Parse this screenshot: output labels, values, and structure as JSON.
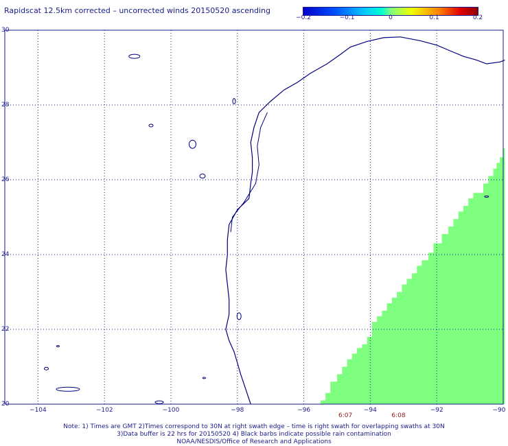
{
  "title": "Rapidscat 12.5km corrected – uncorrected winds 20150520 ascending",
  "colorbar": {
    "ticks": [
      {
        "value": -0.2,
        "label": "−0.2"
      },
      {
        "value": -0.1,
        "label": "−0.1"
      },
      {
        "value": 0,
        "label": "0"
      },
      {
        "value": 0.1,
        "label": "0.1"
      },
      {
        "value": 0.2,
        "label": "0.2"
      }
    ]
  },
  "map": {
    "lat_range": [
      20,
      30
    ],
    "lon_range": [
      -105,
      -90
    ],
    "lat_labels": [
      {
        "lat": 30,
        "label": "30"
      },
      {
        "lat": 28,
        "label": "28"
      },
      {
        "lat": 26,
        "label": "26"
      },
      {
        "lat": 24,
        "label": "24"
      },
      {
        "lat": 22,
        "label": "22"
      },
      {
        "lat": 20,
        "label": "20"
      }
    ],
    "lon_labels": [
      {
        "lon": -104,
        "label": "−104"
      },
      {
        "lon": -102,
        "label": "−102"
      },
      {
        "lon": -100,
        "label": "−100"
      },
      {
        "lon": -98,
        "label": "−98"
      },
      {
        "lon": -96,
        "label": "−96"
      },
      {
        "lon": -94,
        "label": "−94"
      },
      {
        "lon": -92,
        "label": "−92"
      },
      {
        "lon": -90,
        "label": "−90"
      }
    ],
    "swath_times": [
      {
        "lon": -94.75,
        "label": "6:07"
      },
      {
        "lon": -93.15,
        "label": "6:08"
      }
    ],
    "swath_color": "#7fff7f",
    "coast_color": "#000080"
  },
  "notes": [
    "Note: 1) Times are GMT 2)Times correspond to 30N at right swath edge – time is right swath for overlapping swaths at 30N",
    "3)Data buffer is 22 hrs for 20150520 4) Black barbs indicate possible rain contamination",
    "NOAA/NESDIS/Office of Research and Applications"
  ]
}
